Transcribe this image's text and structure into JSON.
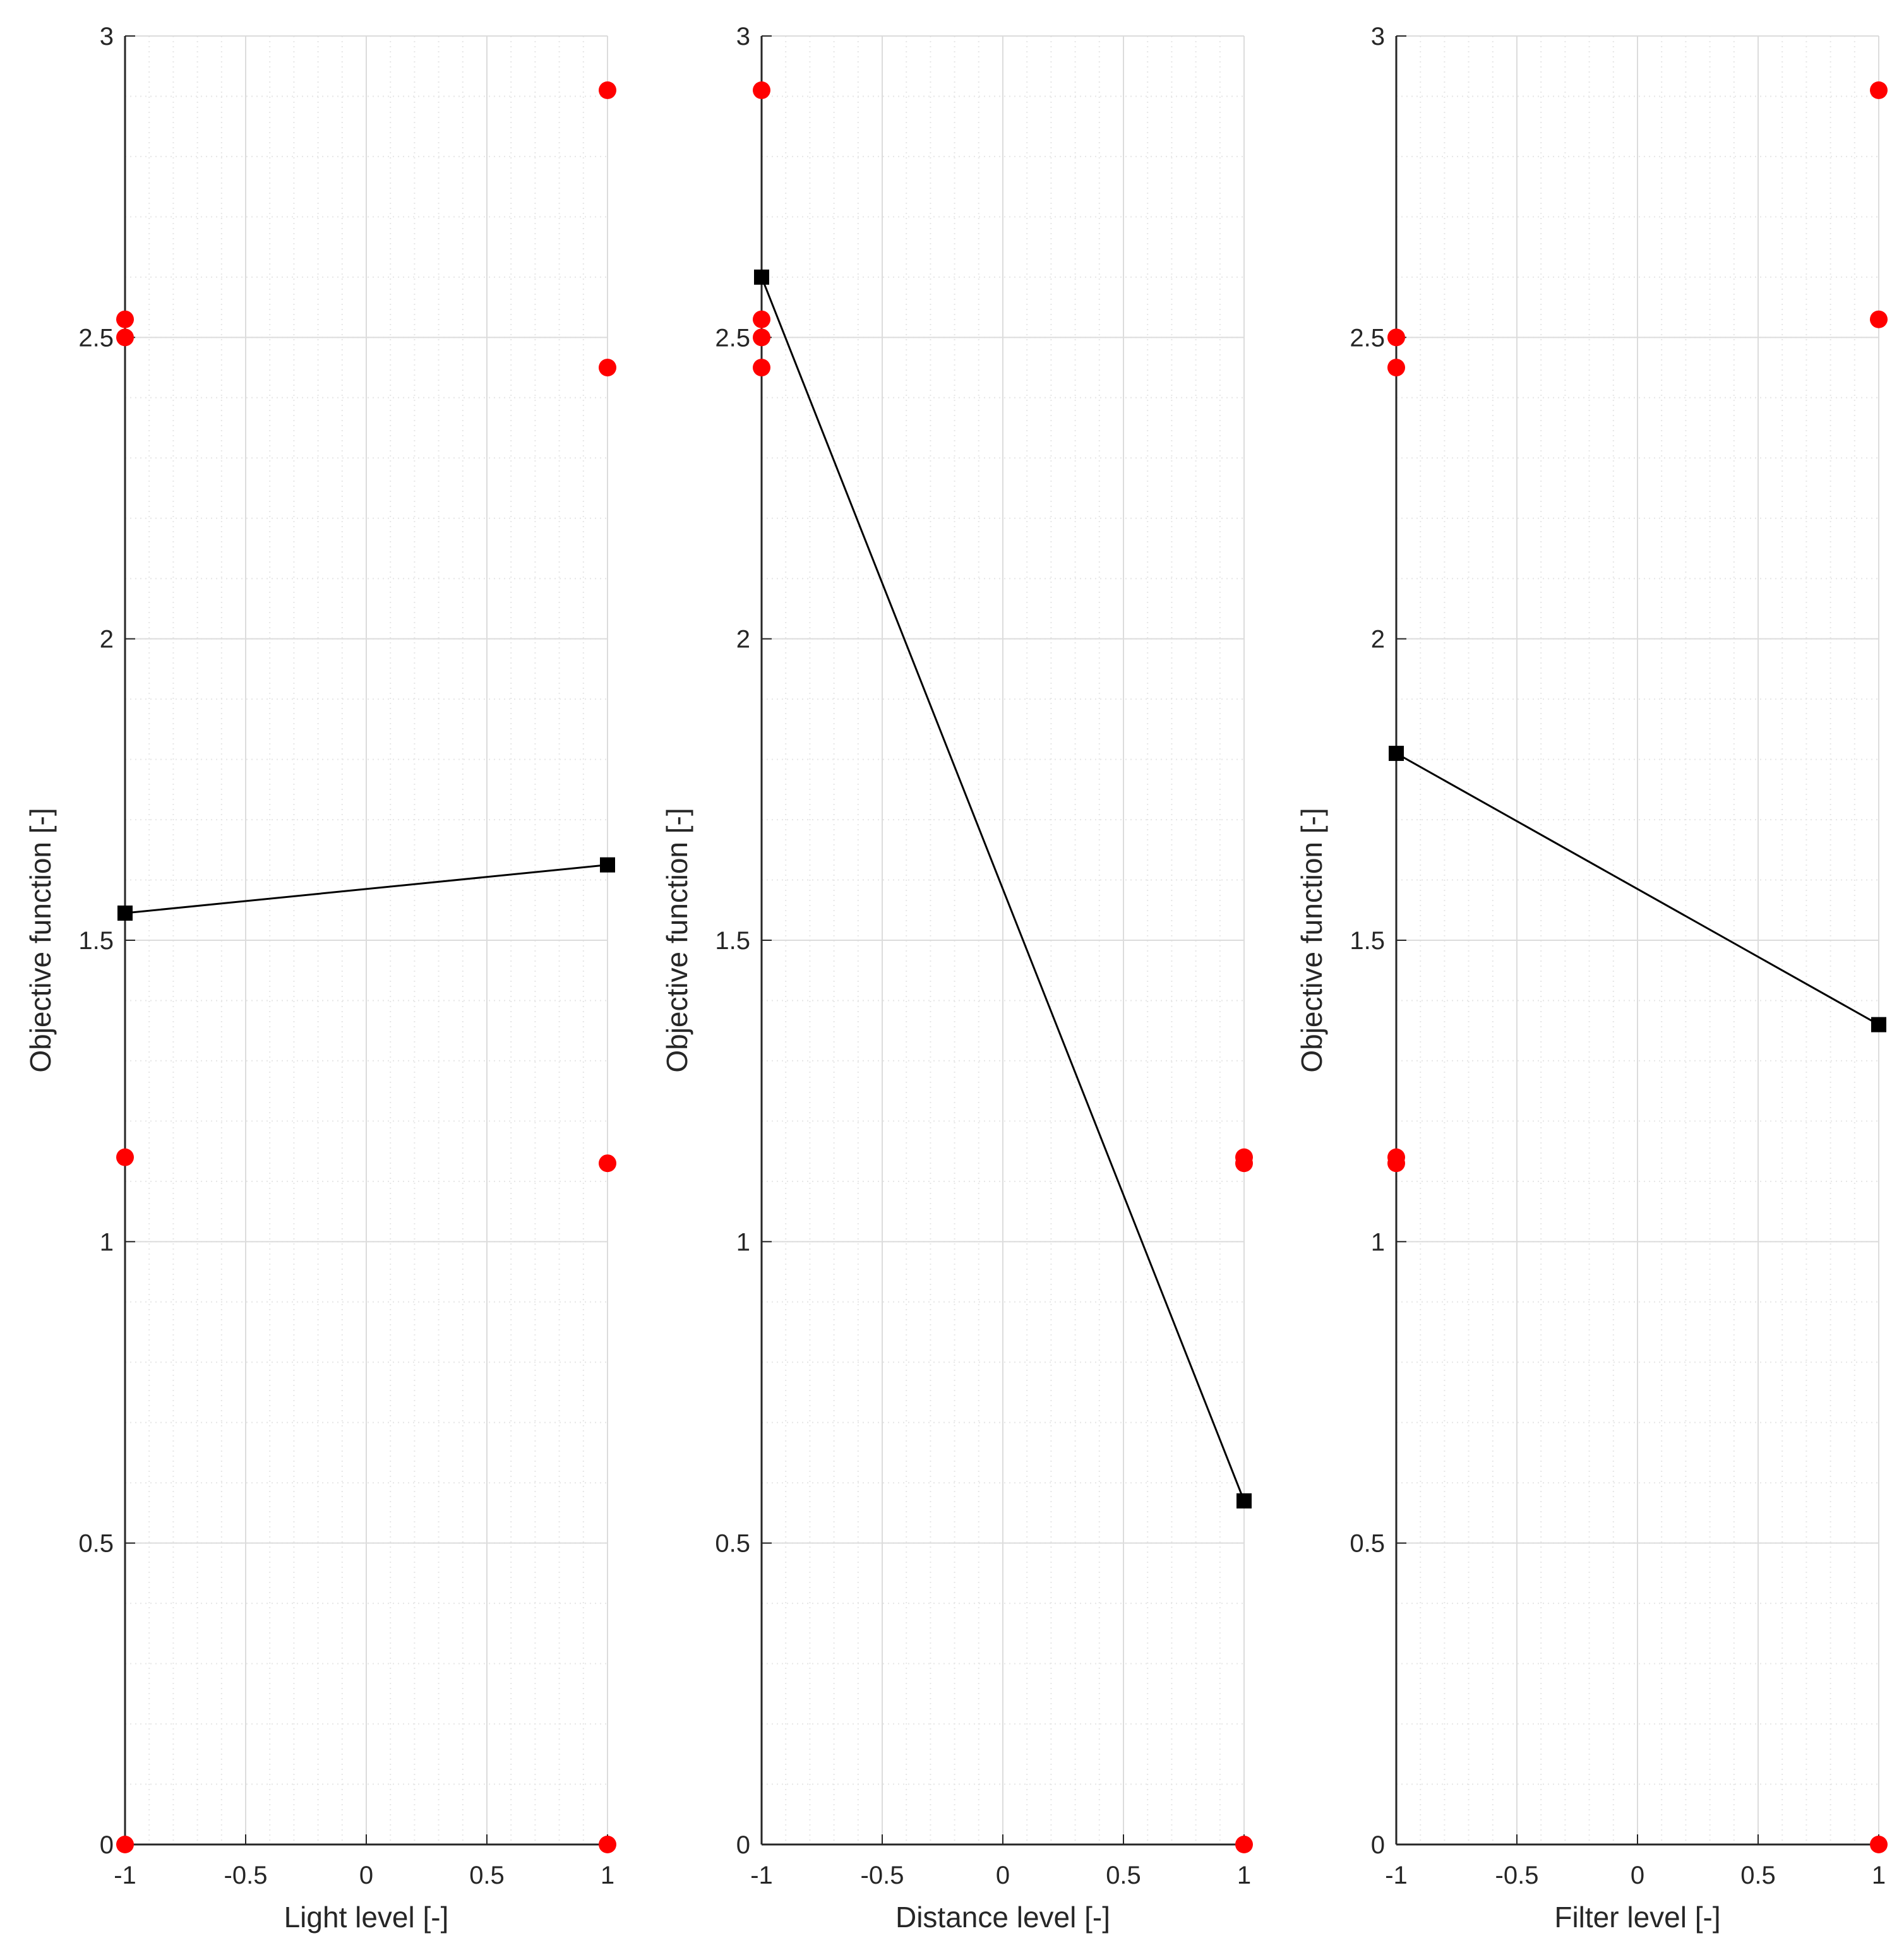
{
  "chart_data": [
    {
      "type": "scatter",
      "xlabel": "Light level  [-]",
      "ylabel": "Objective function  [-]",
      "xlim": [
        -1,
        1
      ],
      "ylim": [
        0,
        3
      ],
      "xticks": [
        "-1",
        "-0.5",
        "0",
        "0.5",
        "1"
      ],
      "yticks": [
        "0",
        "0.5",
        "1",
        "1.5",
        "2",
        "2.5",
        "3"
      ],
      "grid": true,
      "series": [
        {
          "marker": "circle",
          "color": "#ff0000",
          "points": [
            [
              -1,
              0
            ],
            [
              -1,
              1.14
            ],
            [
              -1,
              2.5
            ],
            [
              -1,
              2.53
            ],
            [
              1,
              0
            ],
            [
              1,
              1.13
            ],
            [
              1,
              2.45
            ],
            [
              1,
              2.91
            ]
          ]
        },
        {
          "marker": "square",
          "color": "#000000",
          "line": true,
          "points": [
            [
              -1,
              1.545
            ],
            [
              1,
              1.625
            ]
          ]
        }
      ]
    },
    {
      "type": "scatter",
      "xlabel": "Distance level  [-]",
      "ylabel": "Objective function  [-]",
      "xlim": [
        -1,
        1
      ],
      "ylim": [
        0,
        3
      ],
      "xticks": [
        "-1",
        "-0.5",
        "0",
        "0.5",
        "1"
      ],
      "yticks": [
        "0",
        "0.5",
        "1",
        "1.5",
        "2",
        "2.5",
        "3"
      ],
      "grid": true,
      "series": [
        {
          "marker": "circle",
          "color": "#ff0000",
          "points": [
            [
              -1,
              2.45
            ],
            [
              -1,
              2.5
            ],
            [
              -1,
              2.53
            ],
            [
              -1,
              2.91
            ],
            [
              1,
              0
            ],
            [
              1,
              1.13
            ],
            [
              1,
              1.14
            ]
          ]
        },
        {
          "marker": "square",
          "color": "#000000",
          "line": true,
          "points": [
            [
              -1,
              2.6
            ],
            [
              1,
              0.57
            ]
          ]
        }
      ]
    },
    {
      "type": "scatter",
      "xlabel": "Filter level  [-]",
      "ylabel": "Objective function  [-]",
      "xlim": [
        -1,
        1
      ],
      "ylim": [
        0,
        3
      ],
      "xticks": [
        "-1",
        "-0.5",
        "0",
        "0.5",
        "1"
      ],
      "yticks": [
        "0",
        "0.5",
        "1",
        "1.5",
        "2",
        "2.5",
        "3"
      ],
      "grid": true,
      "series": [
        {
          "marker": "circle",
          "color": "#ff0000",
          "points": [
            [
              -1,
              1.13
            ],
            [
              -1,
              1.14
            ],
            [
              -1,
              2.45
            ],
            [
              -1,
              2.5
            ],
            [
              1,
              0
            ],
            [
              1,
              2.53
            ],
            [
              1,
              2.91
            ]
          ]
        },
        {
          "marker": "square",
          "color": "#000000",
          "line": true,
          "points": [
            [
              -1,
              1.81
            ],
            [
              1,
              1.36
            ]
          ]
        }
      ]
    }
  ]
}
